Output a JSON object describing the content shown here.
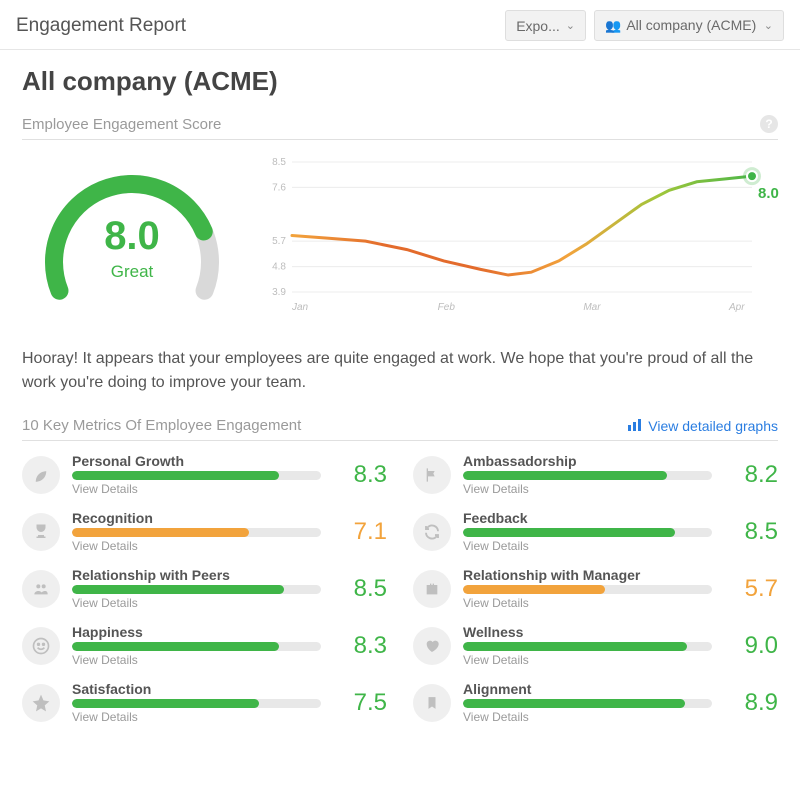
{
  "topbar": {
    "title": "Engagement Report",
    "export_label": "Expo...",
    "scope_label": "All company (ACME)"
  },
  "company_title": "All company (ACME)",
  "engagement": {
    "section_title": "Employee Engagement Score",
    "score": "8.0",
    "score_label": "Great",
    "gauge": {
      "fill_color": "#3fb548",
      "track_color": "#d9d9d9",
      "stroke_width": 18,
      "fraction": 0.8
    },
    "trend": {
      "ylabels": [
        "8.5",
        "7.6",
        "5.7",
        "4.8",
        "3.9"
      ],
      "ylim": [
        3.9,
        8.5
      ],
      "xlabels": [
        "Jan",
        "Feb",
        "Mar",
        "Apr"
      ],
      "points": [
        {
          "x": 0.0,
          "y": 5.9
        },
        {
          "x": 0.08,
          "y": 5.8
        },
        {
          "x": 0.16,
          "y": 5.7
        },
        {
          "x": 0.25,
          "y": 5.4
        },
        {
          "x": 0.33,
          "y": 5.0
        },
        {
          "x": 0.41,
          "y": 4.7
        },
        {
          "x": 0.47,
          "y": 4.5
        },
        {
          "x": 0.52,
          "y": 4.6
        },
        {
          "x": 0.58,
          "y": 5.0
        },
        {
          "x": 0.64,
          "y": 5.6
        },
        {
          "x": 0.7,
          "y": 6.3
        },
        {
          "x": 0.76,
          "y": 7.0
        },
        {
          "x": 0.82,
          "y": 7.5
        },
        {
          "x": 0.88,
          "y": 7.8
        },
        {
          "x": 0.94,
          "y": 7.9
        },
        {
          "x": 1.0,
          "y": 8.0
        }
      ],
      "gradient_colors": [
        "#f2a33c",
        "#e36b2c",
        "#e36b2c",
        "#f2a33c",
        "#9fc63b",
        "#4cb648"
      ],
      "grid_color": "#ececec",
      "axis_text_color": "#bdbdbd",
      "axis_fontsize": 10,
      "end_marker_color": "#3fb548",
      "end_value": "8.0"
    }
  },
  "summary": "Hooray! It appears that your employees are quite engaged at work. We hope that you're proud of all the work you're doing to improve your team.",
  "metrics_section": {
    "title": "10 Key Metrics Of Employee Engagement",
    "detailed_link": "View detailed graphs"
  },
  "colors": {
    "green": "#3fb548",
    "orange": "#f2a33c",
    "bar_track": "#e8e8e8"
  },
  "metrics": [
    {
      "name": "Personal Growth",
      "score": "8.3",
      "fill": 0.83,
      "color": "#3fb548",
      "icon": "leaf",
      "details": "View Details",
      "score_color": "#3fb548"
    },
    {
      "name": "Ambassadorship",
      "score": "8.2",
      "fill": 0.82,
      "color": "#3fb548",
      "icon": "flag",
      "details": "View Details",
      "score_color": "#3fb548"
    },
    {
      "name": "Recognition",
      "score": "7.1",
      "fill": 0.71,
      "color": "#f2a33c",
      "icon": "trophy",
      "details": "View Details",
      "score_color": "#f2a33c"
    },
    {
      "name": "Feedback",
      "score": "8.5",
      "fill": 0.85,
      "color": "#3fb548",
      "icon": "refresh",
      "details": "View Details",
      "score_color": "#3fb548"
    },
    {
      "name": "Relationship with Peers",
      "score": "8.5",
      "fill": 0.85,
      "color": "#3fb548",
      "icon": "people",
      "details": "View Details",
      "score_color": "#3fb548"
    },
    {
      "name": "Relationship with Manager",
      "score": "5.7",
      "fill": 0.57,
      "color": "#f2a33c",
      "icon": "briefcase",
      "details": "View Details",
      "score_color": "#f2a33c"
    },
    {
      "name": "Happiness",
      "score": "8.3",
      "fill": 0.83,
      "color": "#3fb548",
      "icon": "smile",
      "details": "View Details",
      "score_color": "#3fb548"
    },
    {
      "name": "Wellness",
      "score": "9.0",
      "fill": 0.9,
      "color": "#3fb548",
      "icon": "heart",
      "details": "View Details",
      "score_color": "#3fb548"
    },
    {
      "name": "Satisfaction",
      "score": "7.5",
      "fill": 0.75,
      "color": "#3fb548",
      "icon": "star",
      "details": "View Details",
      "score_color": "#3fb548"
    },
    {
      "name": "Alignment",
      "score": "8.9",
      "fill": 0.89,
      "color": "#3fb548",
      "icon": "bookmark",
      "details": "View Details",
      "score_color": "#3fb548"
    }
  ]
}
